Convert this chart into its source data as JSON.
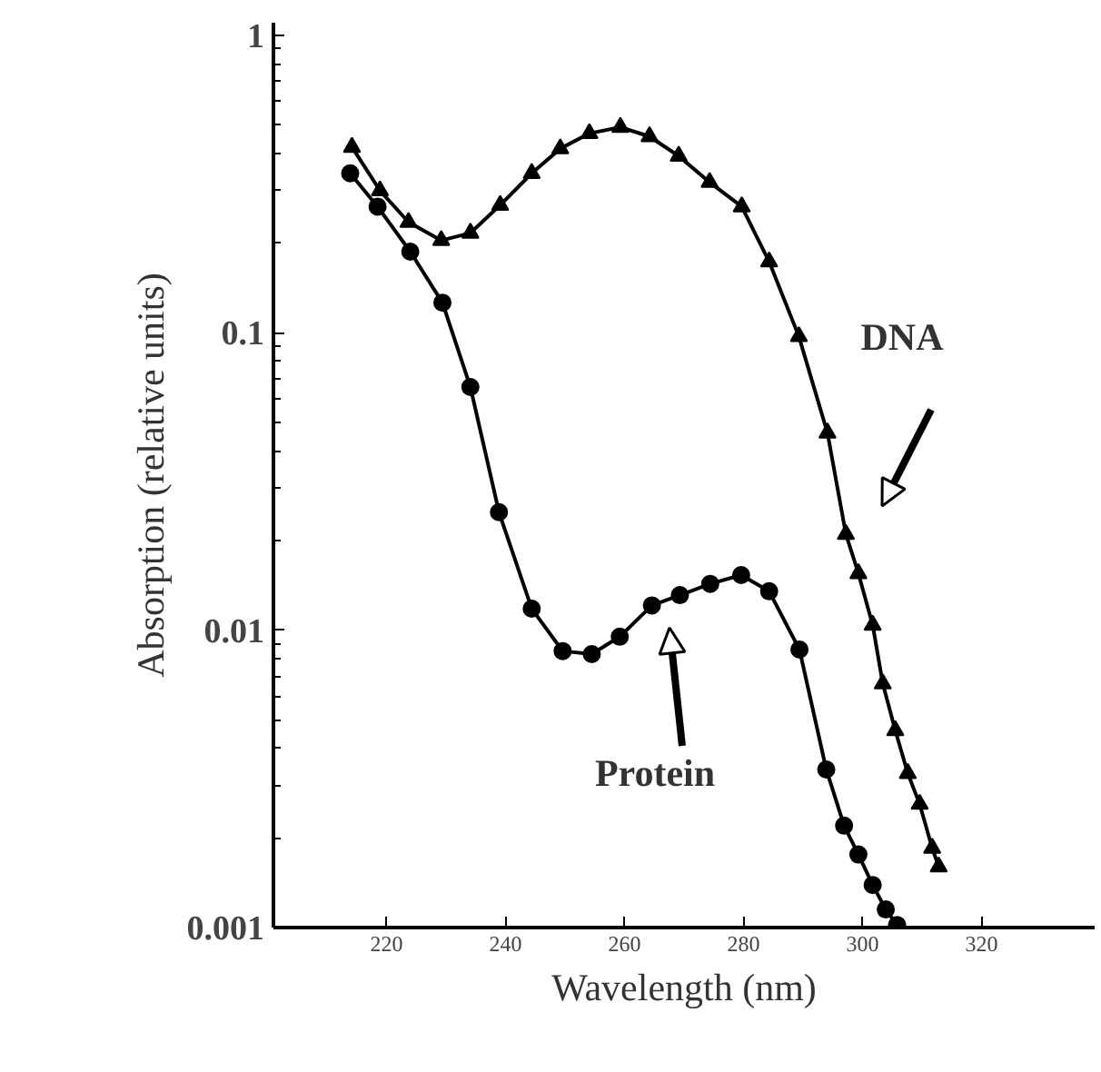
{
  "chart_data": {
    "type": "line",
    "xlabel": "Wavelength (nm)",
    "ylabel": "Absorption (relative units)",
    "log": "y",
    "xlim": [
      201,
      339
    ],
    "xticks": [
      220,
      240,
      260,
      280,
      300,
      320
    ],
    "ylim": [
      0.001,
      1.1
    ],
    "yticks": [
      0.001,
      0.01,
      0.1,
      1
    ],
    "grid": false,
    "series": [
      {
        "color": "#000000",
        "marker": "triangle",
        "x": [
          214.2,
          218.9,
          223.7,
          229.2,
          234.1,
          239.1,
          244.4,
          249.2,
          254.1,
          259.3,
          264.2,
          269.1,
          274.3,
          279.7,
          284.3,
          289.3,
          294.1,
          297.2,
          299.3,
          301.7,
          303.4,
          305.5,
          307.6,
          309.6,
          311.7,
          312.8
        ],
        "values": [
          0.42,
          0.3,
          0.235,
          0.204,
          0.216,
          0.268,
          0.343,
          0.415,
          0.467,
          0.49,
          0.456,
          0.392,
          0.32,
          0.265,
          0.173,
          0.097,
          0.046,
          0.021,
          0.0155,
          0.0104,
          0.0066,
          0.0046,
          0.0033,
          0.0026,
          0.00185,
          0.0016
        ]
      },
      {
        "color": "#000000",
        "marker": "circle",
        "x": [
          213.9,
          218.5,
          224.0,
          229.4,
          234.1,
          238.9,
          244.4,
          249.6,
          254.5,
          259.2,
          264.6,
          269.3,
          274.4,
          279.6,
          284.3,
          289.4,
          293.9,
          296.9,
          299.3,
          301.7,
          303.9,
          305.8
        ],
        "values": [
          0.343,
          0.265,
          0.187,
          0.126,
          0.0656,
          0.0249,
          0.0118,
          0.0085,
          0.0083,
          0.0095,
          0.0121,
          0.0131,
          0.0143,
          0.0153,
          0.0135,
          0.0086,
          0.0034,
          0.0022,
          0.00176,
          0.00139,
          0.00115,
          0.00102
        ]
      }
    ],
    "annotations": [
      "DNA",
      "Protein"
    ]
  }
}
